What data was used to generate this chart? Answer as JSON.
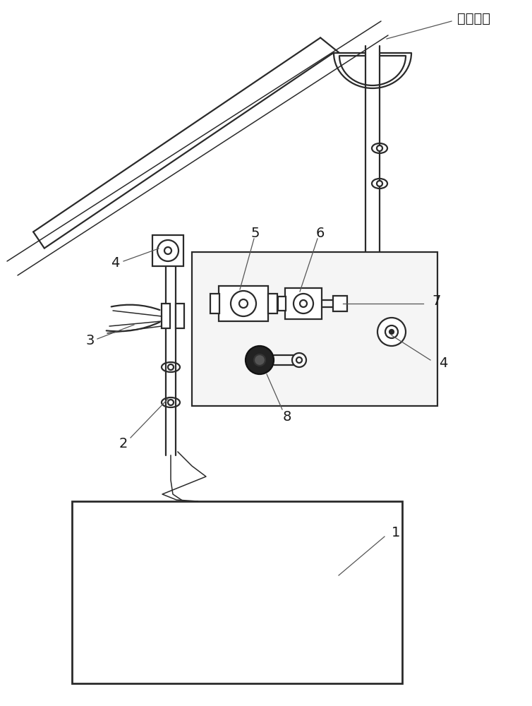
{
  "bg_color": "#ffffff",
  "lc": "#2a2a2a",
  "label_color": "#1a1a1a",
  "label_yijikaisongle": "一级开松",
  "figsize": [
    7.54,
    10.0
  ],
  "dpi": 100
}
